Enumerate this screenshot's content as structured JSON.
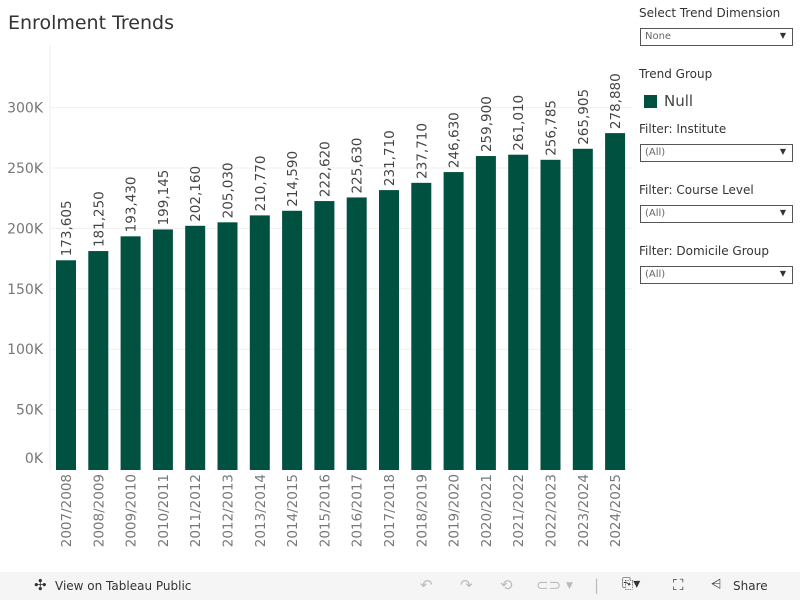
{
  "title": "Enrolment Trends",
  "controls": {
    "trend_dimension_label": "Select Trend Dimension",
    "trend_dimension_value": "None",
    "trend_group_label": "Trend Group",
    "legend_item": "Null",
    "institute_label": "Filter: Institute",
    "institute_value": "(All)",
    "course_level_label": "Filter: Course Level",
    "course_level_value": "(All)",
    "domicile_label": "Filter: Domicile Group",
    "domicile_value": "(All)"
  },
  "toolbar": {
    "view_label": "View on Tableau Public",
    "share_label": "Share"
  },
  "chart_data": {
    "type": "bar",
    "title": "Enrolment Trends",
    "categories": [
      "2007/2008",
      "2008/2009",
      "2009/2010",
      "2010/2011",
      "2011/2012",
      "2012/2013",
      "2013/2014",
      "2014/2015",
      "2015/2016",
      "2016/2017",
      "2017/2018",
      "2018/2019",
      "2019/2020",
      "2020/2021",
      "2021/2022",
      "2022/2023",
      "2023/2024",
      "2024/2025"
    ],
    "values": [
      173605,
      181250,
      193430,
      199145,
      202160,
      205030,
      210770,
      214590,
      222620,
      225630,
      231710,
      237710,
      246630,
      259900,
      261010,
      256785,
      265905,
      278880
    ],
    "value_labels": [
      "173,605",
      "181,250",
      "193,430",
      "199,145",
      "202,160",
      "205,030",
      "210,770",
      "214,590",
      "222,620",
      "225,630",
      "231,710",
      "237,710",
      "246,630",
      "259,900",
      "261,010",
      "256,785",
      "265,905",
      "278,880"
    ],
    "yticks": [
      0,
      50000,
      100000,
      150000,
      200000,
      250000,
      300000
    ],
    "ytick_labels": [
      "0K",
      "50K",
      "100K",
      "150K",
      "200K",
      "250K",
      "300K"
    ],
    "ylim": [
      0,
      340000
    ],
    "grid": true,
    "bar_color": "#00513f",
    "legend": {
      "title": "Trend Group",
      "entries": [
        "Null"
      ],
      "placement": "right"
    }
  }
}
